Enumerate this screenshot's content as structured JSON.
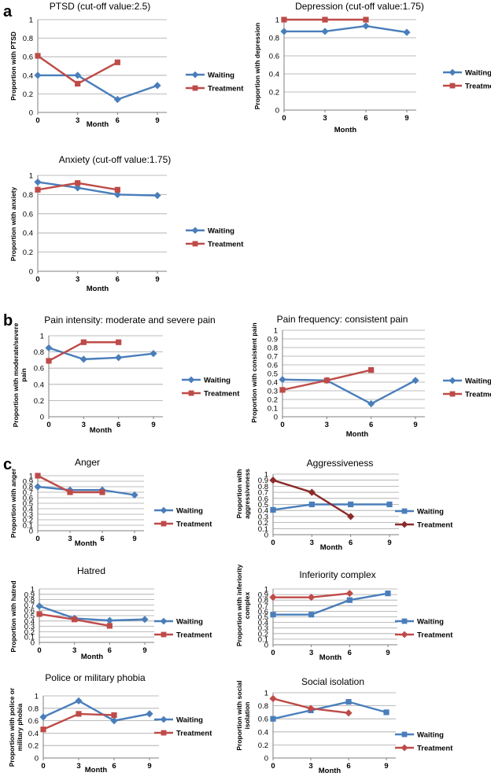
{
  "section_labels": [
    "a",
    "b",
    "c"
  ],
  "colors": {
    "waiting": "#4a7ebb",
    "treatment": "#be4b48",
    "treatment_dark": "#8b2a2a",
    "grid": "#a6a6a6",
    "axis": "#7f7f7f"
  },
  "chart_data": [
    {
      "id": "ptsd",
      "section": "a",
      "type": "line",
      "title": "PTSD (cut-off value:2.5)",
      "xlabel": "Month",
      "ylabel": [
        "Proportion with PTSD"
      ],
      "categories": [
        "0",
        "3",
        "6",
        "9"
      ],
      "ylim": [
        0,
        1
      ],
      "yticks": [
        "0",
        "0.2",
        "0.4",
        "0.6",
        "0.8",
        "1"
      ],
      "series": [
        {
          "name": "Waiting",
          "marker": "diamond",
          "color": "#4a7ebb",
          "values": [
            0.4,
            0.4,
            0.14,
            0.29
          ]
        },
        {
          "name": "Treatment",
          "marker": "square",
          "color": "#be4b48",
          "values": [
            0.61,
            0.31,
            0.54,
            null
          ]
        }
      ]
    },
    {
      "id": "depression",
      "section": "a",
      "type": "line",
      "title": "Depression (cut-off value:1.75)",
      "xlabel": "Month",
      "ylabel": [
        "Proportion with depression"
      ],
      "categories": [
        "0",
        "3",
        "6",
        "9"
      ],
      "ylim": [
        0,
        1
      ],
      "yticks": [
        "0",
        "0.2",
        "0.4",
        "0.6",
        "0.8",
        "1"
      ],
      "series": [
        {
          "name": "Waiting",
          "marker": "diamond",
          "color": "#4a7ebb",
          "values": [
            0.87,
            0.87,
            0.93,
            0.86
          ]
        },
        {
          "name": "Treatment",
          "marker": "square",
          "color": "#be4b48",
          "values": [
            1.0,
            1.0,
            1.0,
            null
          ]
        }
      ]
    },
    {
      "id": "anxiety",
      "section": "a",
      "type": "line",
      "title": "Anxiety (cut-off value:1.75)",
      "xlabel": "Month",
      "ylabel": [
        "Proportion with anxiety"
      ],
      "categories": [
        "0",
        "3",
        "6",
        "9"
      ],
      "ylim": [
        0,
        1
      ],
      "yticks": [
        "0",
        "0.2",
        "0.4",
        "0.6",
        "0.8",
        "1"
      ],
      "series": [
        {
          "name": "Waiting",
          "marker": "diamond",
          "color": "#4a7ebb",
          "values": [
            0.93,
            0.87,
            0.8,
            0.79
          ]
        },
        {
          "name": "Treatment",
          "marker": "square",
          "color": "#be4b48",
          "values": [
            0.85,
            0.92,
            0.85,
            null
          ]
        }
      ]
    },
    {
      "id": "pain-intensity",
      "section": "b",
      "type": "line",
      "title": "Pain intensity: moderate and severe pain",
      "xlabel": "Month",
      "ylabel": [
        "Proportion with moderate/severe",
        "pain"
      ],
      "categories": [
        "0",
        "3",
        "6",
        "9"
      ],
      "ylim": [
        0,
        1
      ],
      "yticks": [
        "0",
        "0.2",
        "0.4",
        "0.6",
        "0.8",
        "1"
      ],
      "series": [
        {
          "name": "Waiting",
          "marker": "diamond",
          "color": "#4a7ebb",
          "values": [
            0.85,
            0.71,
            0.73,
            0.78
          ]
        },
        {
          "name": "Treatment",
          "marker": "square",
          "color": "#be4b48",
          "values": [
            0.69,
            0.92,
            0.92,
            null
          ]
        }
      ]
    },
    {
      "id": "pain-frequency",
      "section": "b",
      "type": "line",
      "title": "Pain frequency: consistent pain",
      "xlabel": "Month",
      "ylabel": [
        "Proportion with consistent pain"
      ],
      "categories": [
        "0",
        "3",
        "6",
        "9"
      ],
      "ylim": [
        0,
        1
      ],
      "yticks": [
        "0",
        "0.1",
        "0.2",
        "0.3",
        "0.4",
        "0.5",
        "0.6",
        "0.7",
        "0.8",
        "0.9",
        "1"
      ],
      "series": [
        {
          "name": "Waiting",
          "marker": "diamond",
          "color": "#4a7ebb",
          "values": [
            0.43,
            0.42,
            0.15,
            0.42
          ]
        },
        {
          "name": "Treatment",
          "marker": "square",
          "color": "#be4b48",
          "values": [
            0.31,
            0.42,
            0.54,
            null
          ]
        }
      ]
    },
    {
      "id": "anger",
      "section": "c",
      "type": "line",
      "title": "Anger",
      "xlabel": "Month",
      "ylabel": [
        "Proportion with anger"
      ],
      "categories": [
        "0",
        "3",
        "6",
        "9"
      ],
      "ylim": [
        0,
        1
      ],
      "yticks": [
        "0",
        "0.1",
        "0.2",
        "0.3",
        "0.4",
        "0.5",
        "0.6",
        "0.7",
        "0.8",
        "0.9",
        "1"
      ],
      "series": [
        {
          "name": "Waiting",
          "marker": "diamond",
          "color": "#4a7ebb",
          "values": [
            0.8,
            0.74,
            0.74,
            0.65
          ]
        },
        {
          "name": "Treatment",
          "marker": "square",
          "color": "#be4b48",
          "values": [
            1.0,
            0.7,
            0.7,
            null
          ]
        }
      ]
    },
    {
      "id": "aggressiveness",
      "section": "c",
      "type": "line",
      "title": "Aggressiveness",
      "xlabel": "Month",
      "ylabel": [
        "Proportion with",
        "aggressiveness"
      ],
      "categories": [
        "0",
        "3",
        "6",
        "9"
      ],
      "ylim": [
        0,
        1
      ],
      "yticks": [
        "0",
        "0.1",
        "0.2",
        "0.3",
        "0.4",
        "0.5",
        "0.6",
        "0.7",
        "0.8",
        "0.9",
        "1"
      ],
      "series": [
        {
          "name": "Waiting",
          "marker": "square",
          "color": "#4a7ebb",
          "values": [
            0.41,
            0.5,
            0.5,
            0.5
          ]
        },
        {
          "name": "Treatment",
          "marker": "diamond",
          "color": "#8b2a2a",
          "values": [
            0.9,
            0.7,
            0.3,
            null
          ]
        }
      ]
    },
    {
      "id": "hatred",
      "section": "c",
      "type": "line",
      "title": "Hatred",
      "xlabel": "Month",
      "ylabel": [
        "Proportion with hatred"
      ],
      "categories": [
        "0",
        "3",
        "6",
        "9"
      ],
      "ylim": [
        0,
        1
      ],
      "yticks": [
        "0",
        "0.1",
        "0.2",
        "0.3",
        "0.4",
        "0.5",
        "0.6",
        "0.7",
        "0.8",
        "0.9",
        "1"
      ],
      "series": [
        {
          "name": "Waiting",
          "marker": "diamond",
          "color": "#4a7ebb",
          "values": [
            0.68,
            0.45,
            0.41,
            0.43
          ]
        },
        {
          "name": "Treatment",
          "marker": "square",
          "color": "#be4b48",
          "values": [
            0.53,
            0.43,
            0.31,
            null
          ]
        }
      ]
    },
    {
      "id": "inferiority",
      "section": "c",
      "type": "line",
      "title": "Inferiority complex",
      "xlabel": "Month",
      "ylabel": [
        "Proportion with inferiority",
        "complex"
      ],
      "categories": [
        "0",
        "3",
        "6",
        "9"
      ],
      "ylim": [
        0,
        1
      ],
      "yticks": [
        "0",
        "0.1",
        "0.2",
        "0.3",
        "0.4",
        "0.5",
        "0.6",
        "0.7",
        "0.8",
        "0.9",
        "1"
      ],
      "series": [
        {
          "name": "Waiting",
          "marker": "square",
          "color": "#4a7ebb",
          "values": [
            0.54,
            0.54,
            0.8,
            0.92
          ]
        },
        {
          "name": "Treatment",
          "marker": "diamond",
          "color": "#be4b48",
          "values": [
            0.85,
            0.85,
            0.92,
            null
          ]
        }
      ]
    },
    {
      "id": "police-phobia",
      "section": "c",
      "type": "line",
      "title": "Police or military phobia",
      "xlabel": "Month",
      "ylabel": [
        "Proportion  with police  or",
        "military phobia"
      ],
      "categories": [
        "0",
        "3",
        "6",
        "9"
      ],
      "ylim": [
        0,
        1
      ],
      "yticks": [
        "0",
        "0.2",
        "0.4",
        "0.6",
        "0.8",
        "1"
      ],
      "series": [
        {
          "name": "Waiting",
          "marker": "diamond",
          "color": "#4a7ebb",
          "values": [
            0.66,
            0.92,
            0.6,
            0.71
          ]
        },
        {
          "name": "Treatment",
          "marker": "square",
          "color": "#be4b48",
          "values": [
            0.46,
            0.71,
            0.69,
            null
          ]
        }
      ]
    },
    {
      "id": "social-isolation",
      "section": "c",
      "type": "line",
      "title": "Social isolation",
      "xlabel": "Month",
      "ylabel": [
        "Proportion with social",
        "isolation"
      ],
      "categories": [
        "0",
        "3",
        "6",
        "9"
      ],
      "ylim": [
        0,
        1
      ],
      "yticks": [
        "0",
        "0.2",
        "0.4",
        "0.6",
        "0.8",
        "1"
      ],
      "series": [
        {
          "name": "Waiting",
          "marker": "square",
          "color": "#4a7ebb",
          "values": [
            0.6,
            0.73,
            0.86,
            0.7
          ]
        },
        {
          "name": "Treatment",
          "marker": "diamond",
          "color": "#be4b48",
          "values": [
            0.91,
            0.76,
            0.69,
            null
          ]
        }
      ]
    }
  ]
}
